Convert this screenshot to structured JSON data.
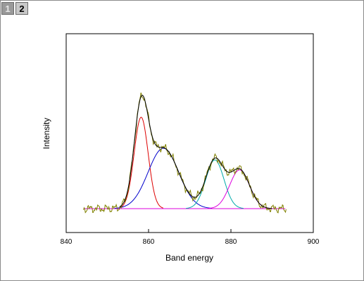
{
  "window": {
    "layer_tabs": [
      {
        "label": "1",
        "active": false
      },
      {
        "label": "2",
        "active": true
      }
    ]
  },
  "chart_data": {
    "type": "line",
    "title": "",
    "xlabel": "Band energy",
    "ylabel": "Intensity",
    "xlim": [
      840,
      900
    ],
    "ylim": [
      0,
      1
    ],
    "xticks": [
      840,
      860,
      880,
      900
    ],
    "x_tick_labels": [
      "840",
      "860",
      "880",
      "900"
    ],
    "y_tick_labels_shown": false,
    "grid": false,
    "legend": false,
    "baseline": 0.12,
    "peaks": [
      {
        "center": 858.2,
        "height": 0.46,
        "width": 1.7,
        "color": "#dd0000"
      },
      {
        "center": 863.6,
        "height": 0.304,
        "width": 3.7,
        "color": "#0000cc"
      },
      {
        "center": 876.1,
        "height": 0.245,
        "width": 2.2,
        "color": "#00aaaa"
      },
      {
        "center": 882.1,
        "height": 0.195,
        "width": 2.4,
        "color": "#dd00dd"
      }
    ],
    "series": [
      {
        "role": "measured",
        "color": "#808000",
        "x_range": [
          844.2,
          893.5
        ]
      },
      {
        "role": "envelope_fit",
        "color": "#000000"
      },
      {
        "role": "baseline",
        "color": "#dd00dd"
      }
    ]
  }
}
